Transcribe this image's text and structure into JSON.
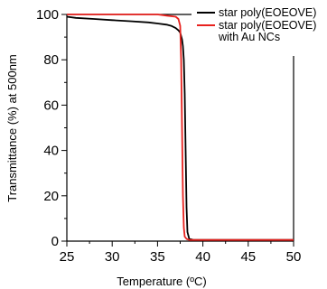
{
  "chart_data": {
    "type": "line",
    "title": "",
    "xlabel": "Temperature (ºC)",
    "ylabel": "Transmittance (%) at 500nm",
    "xlim": [
      25,
      50
    ],
    "ylim": [
      0,
      100
    ],
    "xticks": [
      "25",
      "30",
      "35",
      "40",
      "45",
      "50"
    ],
    "yticks": [
      "0",
      "20",
      "40",
      "60",
      "80",
      "100"
    ],
    "grid": false,
    "legend_position": "top-right",
    "series": [
      {
        "name": "star poly(EOEOVE)",
        "color": "#000000",
        "x": [
          25,
          26,
          28,
          30,
          32,
          34,
          35,
          36,
          36.5,
          37,
          37.3,
          37.5,
          37.7,
          37.8,
          37.9,
          38.0,
          38.1,
          38.2,
          38.3,
          38.5,
          39,
          40,
          45,
          50
        ],
        "y": [
          99,
          98.5,
          98,
          97.5,
          97,
          96.5,
          96,
          95.5,
          95,
          94,
          93,
          92,
          89,
          86,
          80,
          65,
          40,
          15,
          4,
          1,
          0.5,
          0.5,
          0.5,
          0.5
        ]
      },
      {
        "name": "star poly(EOEOVE) with Au NCs",
        "legend_lines": [
          "star poly(EOEOVE)",
          "with Au NCs"
        ],
        "color": "#e8221e",
        "x": [
          25,
          26,
          28,
          30,
          32,
          34,
          35,
          36,
          37,
          37.3,
          37.5,
          37.6,
          37.7,
          37.8,
          37.9,
          38.0,
          38.2,
          38.5,
          39,
          40,
          45,
          50
        ],
        "y": [
          100,
          100,
          100,
          100,
          100,
          100,
          100,
          99.5,
          99,
          98,
          95,
          80,
          50,
          20,
          6,
          2,
          1,
          0.5,
          0.5,
          0.5,
          0.5,
          0.5
        ]
      }
    ]
  }
}
